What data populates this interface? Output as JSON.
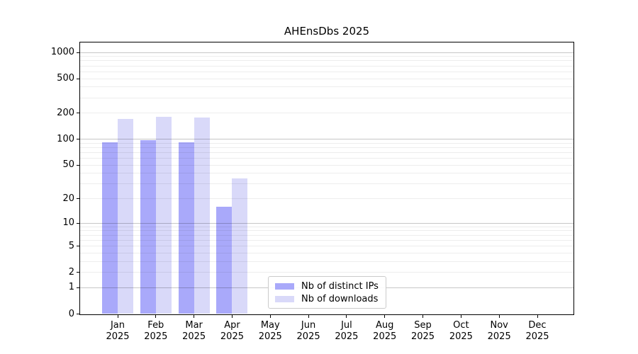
{
  "chart_data": {
    "type": "bar",
    "title": "AHEnsDbs 2025",
    "categories": [
      "Jan",
      "Feb",
      "Mar",
      "Apr",
      "May",
      "Jun",
      "Jul",
      "Aug",
      "Sep",
      "Oct",
      "Nov",
      "Dec"
    ],
    "x_tick_second_line": "2025",
    "series": [
      {
        "name": "Nb of distinct IPs",
        "color": "#a9a9fa",
        "values": [
          93,
          98,
          92,
          16,
          0,
          0,
          0,
          0,
          0,
          0,
          0,
          0
        ]
      },
      {
        "name": "Nb of downloads",
        "color": "#d9d9f9",
        "values": [
          173,
          181,
          177,
          35,
          0,
          0,
          0,
          0,
          0,
          0,
          0,
          0
        ]
      }
    ],
    "yscale": "log1p",
    "ylim": [
      0,
      1300
    ],
    "yticks": [
      0,
      1,
      2,
      5,
      10,
      20,
      50,
      100,
      200,
      500,
      1000
    ],
    "grid": {
      "orientation": "horizontal",
      "major_at": [
        1,
        10,
        100,
        1000
      ],
      "minor_decades": [
        1,
        10,
        100
      ]
    },
    "legend": {
      "position": "lower-center-inside"
    },
    "xlabel": "",
    "ylabel": ""
  }
}
